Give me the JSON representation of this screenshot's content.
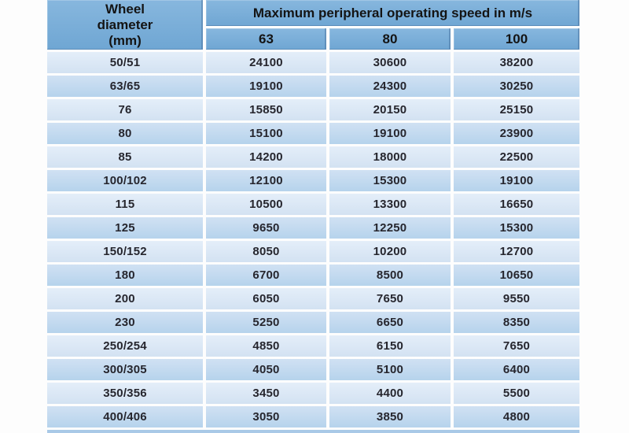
{
  "chart_data": {
    "type": "table",
    "title": "Maximum peripheral operating speed in m/s",
    "row_header_label": "Wheel diameter (mm)",
    "columns": [
      "63",
      "80",
      "100"
    ],
    "rows": [
      {
        "wheel_diameter": "50/51",
        "values": [
          24100,
          30600,
          38200
        ]
      },
      {
        "wheel_diameter": "63/65",
        "values": [
          19100,
          24300,
          30250
        ]
      },
      {
        "wheel_diameter": "76",
        "values": [
          15850,
          20150,
          25150
        ]
      },
      {
        "wheel_diameter": "80",
        "values": [
          15100,
          19100,
          23900
        ]
      },
      {
        "wheel_diameter": "85",
        "values": [
          14200,
          18000,
          22500
        ]
      },
      {
        "wheel_diameter": "100/102",
        "values": [
          12100,
          15300,
          19100
        ]
      },
      {
        "wheel_diameter": "115",
        "values": [
          10500,
          13300,
          16650
        ]
      },
      {
        "wheel_diameter": "125",
        "values": [
          9650,
          12250,
          15300
        ]
      },
      {
        "wheel_diameter": "150/152",
        "values": [
          8050,
          10200,
          12700
        ]
      },
      {
        "wheel_diameter": "180",
        "values": [
          6700,
          8500,
          10650
        ]
      },
      {
        "wheel_diameter": "200",
        "values": [
          6050,
          7650,
          9550
        ]
      },
      {
        "wheel_diameter": "230",
        "values": [
          5250,
          6650,
          8350
        ]
      },
      {
        "wheel_diameter": "250/254",
        "values": [
          4850,
          6150,
          7650
        ]
      },
      {
        "wheel_diameter": "300/305",
        "values": [
          4050,
          5100,
          6400
        ]
      },
      {
        "wheel_diameter": "350/356",
        "values": [
          3450,
          4400,
          5500
        ]
      },
      {
        "wheel_diameter": "400/406",
        "values": [
          3050,
          3850,
          4800
        ]
      }
    ]
  },
  "display": {
    "wheel_header_wrapped": "Wheel\ndiameter\n(mm)"
  },
  "colors": {
    "header_blue": "#78abd6",
    "row_light": "#dce9f6",
    "row_dark": "#c2d9ee",
    "bottom_strip": "#a9c9e7",
    "text_dark": "#26262e",
    "background": "#fdfdfd"
  }
}
